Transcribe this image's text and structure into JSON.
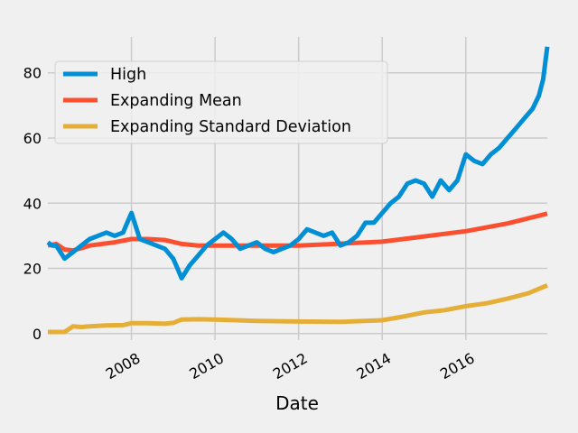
{
  "chart_data": {
    "type": "line",
    "title": "",
    "xlabel": "Date",
    "ylabel": "",
    "xlim": [
      2006.0,
      2017.95
    ],
    "ylim": [
      -2,
      91
    ],
    "xticks": [
      2008,
      2010,
      2012,
      2014,
      2016
    ],
    "xtick_labels": [
      "2008",
      "2010",
      "2012",
      "2014",
      "2016"
    ],
    "yticks": [
      0,
      20,
      40,
      60,
      80
    ],
    "ytick_labels": [
      "0",
      "20",
      "40",
      "60",
      "80"
    ],
    "grid": true,
    "legend_position": "top-left",
    "series": [
      {
        "name": "High",
        "color": "#008fd5",
        "x": [
          2006.0,
          2006.1,
          2006.2,
          2006.3,
          2006.4,
          2006.5,
          2006.6,
          2006.8,
          2007.0,
          2007.2,
          2007.4,
          2007.6,
          2007.8,
          2007.9,
          2008.0,
          2008.1,
          2008.2,
          2008.4,
          2008.6,
          2008.8,
          2009.0,
          2009.1,
          2009.2,
          2009.4,
          2009.6,
          2009.8,
          2010.0,
          2010.2,
          2010.4,
          2010.6,
          2010.8,
          2011.0,
          2011.2,
          2011.4,
          2011.6,
          2011.8,
          2012.0,
          2012.2,
          2012.4,
          2012.6,
          2012.8,
          2013.0,
          2013.2,
          2013.4,
          2013.6,
          2013.8,
          2014.0,
          2014.2,
          2014.4,
          2014.6,
          2014.8,
          2015.0,
          2015.2,
          2015.4,
          2015.6,
          2015.8,
          2016.0,
          2016.2,
          2016.4,
          2016.6,
          2016.8,
          2017.0,
          2017.2,
          2017.4,
          2017.6,
          2017.75,
          2017.85,
          2017.95
        ],
        "values": [
          28,
          27,
          27,
          25,
          23,
          24,
          25,
          27,
          29,
          30,
          31,
          30,
          31,
          34,
          37,
          33,
          29,
          28,
          27,
          26,
          23,
          20,
          17,
          21,
          24,
          27,
          29,
          31,
          29,
          26,
          27,
          28,
          26,
          25,
          26,
          27,
          29,
          32,
          31,
          30,
          31,
          27,
          28,
          30,
          34,
          34,
          37,
          40,
          42,
          46,
          47,
          46,
          42,
          47,
          44,
          47,
          55,
          53,
          52,
          55,
          57,
          60,
          63,
          66,
          69,
          73,
          78,
          88
        ]
      },
      {
        "name": "Expanding Mean",
        "color": "#fc4f30",
        "x": [
          2006.0,
          2006.2,
          2006.4,
          2006.6,
          2006.8,
          2007.0,
          2007.3,
          2007.6,
          2008.0,
          2008.4,
          2008.8,
          2009.2,
          2009.6,
          2010.0,
          2011.0,
          2012.0,
          2013.0,
          2014.0,
          2015.0,
          2016.0,
          2017.0,
          2017.95
        ],
        "values": [
          27,
          27.5,
          25.8,
          25.5,
          26.2,
          27,
          27.5,
          28,
          29,
          29,
          28.7,
          27.5,
          27,
          27,
          27,
          27,
          27.6,
          28.2,
          29.8,
          31.4,
          33.8,
          36.8
        ]
      },
      {
        "name": "Expanding Standard Deviation",
        "color": "#e5ae38",
        "x": [
          2006.0,
          2006.2,
          2006.4,
          2006.6,
          2006.8,
          2007.0,
          2007.4,
          2007.8,
          2008.0,
          2008.4,
          2008.8,
          2009.0,
          2009.2,
          2009.6,
          2010.0,
          2011.0,
          2012.0,
          2013.0,
          2014.0,
          2014.5,
          2015.0,
          2015.5,
          2016.0,
          2016.5,
          2017.0,
          2017.5,
          2017.95
        ],
        "values": [
          0.5,
          0.5,
          0.5,
          2.2,
          2.0,
          2.2,
          2.5,
          2.6,
          3.2,
          3.2,
          3.0,
          3.3,
          4.3,
          4.4,
          4.3,
          3.9,
          3.7,
          3.6,
          4.1,
          5.2,
          6.5,
          7.2,
          8.4,
          9.3,
          10.7,
          12.4,
          14.8
        ]
      }
    ]
  }
}
